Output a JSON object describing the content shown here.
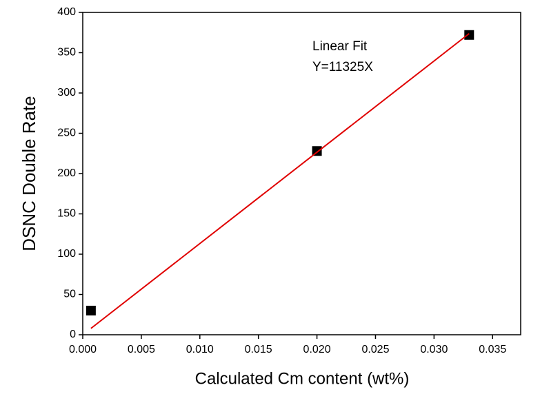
{
  "chart_data": {
    "type": "scatter",
    "xlabel": "Calculated Cm content (wt%)",
    "ylabel": "DSNC Double Rate",
    "annotations": [
      "Linear Fit",
      "Y=11325X"
    ],
    "xlim": [
      0,
      0.0374
    ],
    "ylim": [
      0,
      400
    ],
    "xticks": [
      {
        "value": 0,
        "label": "0.000"
      },
      0.005,
      {
        "value": 0.01,
        "label": "0.010"
      },
      0.015,
      {
        "value": 0.02,
        "label": "0.020"
      },
      0.025,
      {
        "value": 0.03,
        "label": "0.030"
      },
      0.035
    ],
    "yticks": [
      0,
      50,
      100,
      150,
      200,
      250,
      300,
      350,
      400
    ],
    "series": [
      {
        "type": "scatter",
        "color": "#000000",
        "x": [
          0.0007,
          0.02,
          0.033
        ],
        "values": [
          30,
          228,
          372
        ]
      },
      {
        "type": "line",
        "color": "#e00000",
        "x": [
          0.0007,
          0.033
        ],
        "values": [
          7.9,
          373.7
        ]
      }
    ]
  }
}
